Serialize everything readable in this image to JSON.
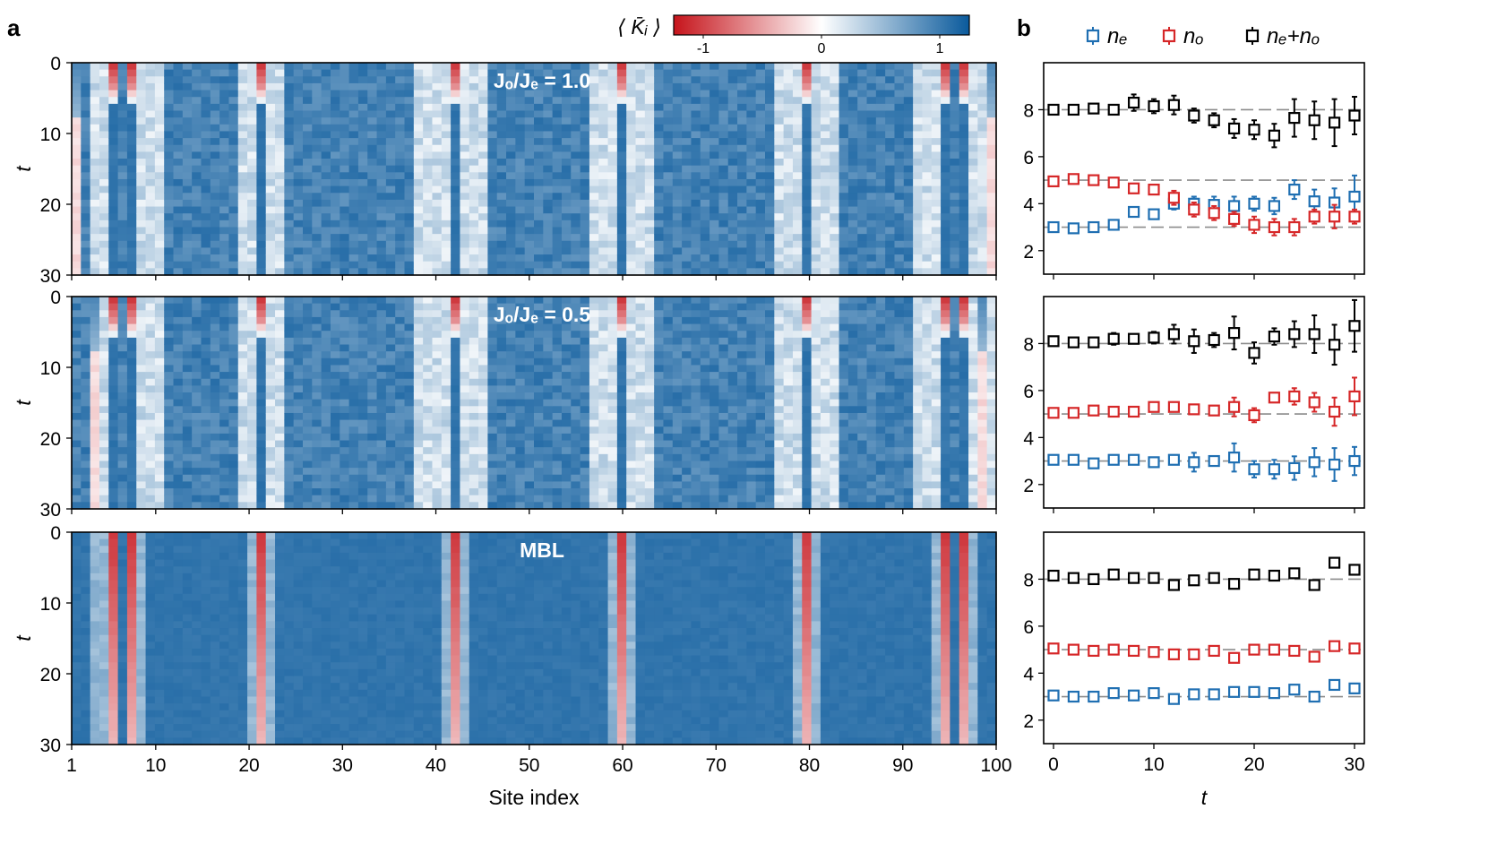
{
  "chart_data": [
    {
      "type": "heatmap",
      "panel_label": "a",
      "xlabel": "Site index",
      "ylabel": "t",
      "x_range": [
        1,
        100
      ],
      "y_range": [
        0,
        30
      ],
      "y_inverted": true,
      "x_ticks": [
        "1",
        "10",
        "20",
        "30",
        "40",
        "50",
        "60",
        "70",
        "80",
        "90",
        "100"
      ],
      "y_ticks": [
        "0",
        "10",
        "20",
        "30"
      ],
      "colorbar": {
        "label": "⟨ K̄ᵢ ⟩",
        "range": [
          -1.25,
          1.25
        ],
        "ticks": [
          "-1",
          "0",
          "1"
        ],
        "colors": [
          "#c6141b",
          "#ffffff",
          "#0a5a9c"
        ]
      },
      "red_sites": [
        5,
        7,
        21,
        42,
        60,
        80,
        95,
        97
      ],
      "subpanels": [
        {
          "annotation": "Jₒ/Jₑ = 1.0",
          "light_sites": [
            3,
            4,
            8,
            9,
            10,
            19,
            20,
            22,
            23,
            38,
            39,
            40,
            41,
            43,
            44,
            45,
            57,
            58,
            59,
            61,
            62,
            63,
            77,
            78,
            79,
            81,
            82,
            83,
            92,
            93,
            94,
            98,
            99,
            100
          ],
          "edge_pink_sites": [
            1,
            100
          ],
          "mbl": false
        },
        {
          "annotation": "Jₒ/Jₑ = 0.5",
          "light_sites": [
            3,
            4,
            8,
            9,
            10,
            19,
            20,
            22,
            23,
            38,
            39,
            40,
            41,
            43,
            44,
            45,
            57,
            58,
            59,
            61,
            62,
            63,
            77,
            78,
            79,
            81,
            82,
            83,
            92,
            93,
            94,
            98,
            99,
            100
          ],
          "edge_pink_sites": [
            3,
            99
          ],
          "mbl": false
        },
        {
          "annotation": "MBL",
          "light_sites": [
            3,
            4,
            8,
            20,
            22,
            41,
            43,
            59,
            61,
            79,
            81,
            94,
            98
          ],
          "edge_pink_sites": [],
          "mbl": true
        }
      ]
    },
    {
      "type": "scatter",
      "panel_label": "b",
      "xlabel": "t",
      "x_range": [
        0,
        30
      ],
      "x_ticks": [
        "0",
        "10",
        "20",
        "30"
      ],
      "y_range": [
        1,
        10
      ],
      "y_ticks": [
        "2",
        "4",
        "6",
        "8"
      ],
      "reference_lines": [
        3,
        5,
        8
      ],
      "legend": [
        {
          "name": "nₑ",
          "color": "#1f6fb2"
        },
        {
          "name": "nₒ",
          "color": "#d62728"
        },
        {
          "name": "nₑ+nₒ",
          "color": "#000000"
        }
      ],
      "x": [
        0,
        2,
        4,
        6,
        8,
        10,
        12,
        14,
        16,
        18,
        20,
        22,
        24,
        26,
        28,
        30
      ],
      "subpanels": [
        {
          "series": [
            {
              "name": "nₑ",
              "values": [
                3.0,
                2.95,
                3.0,
                3.1,
                3.65,
                3.55,
                4.0,
                4.0,
                3.95,
                3.9,
                4.0,
                3.9,
                4.6,
                4.1,
                4.05,
                4.3
              ],
              "errors": [
                0.1,
                0.1,
                0.1,
                0.1,
                0.2,
                0.2,
                0.25,
                0.3,
                0.35,
                0.4,
                0.3,
                0.35,
                0.4,
                0.5,
                0.6,
                0.9
              ]
            },
            {
              "name": "nₒ",
              "values": [
                4.95,
                5.05,
                5.0,
                4.9,
                4.65,
                4.6,
                4.25,
                3.75,
                3.6,
                3.35,
                3.1,
                3.0,
                3.0,
                3.45,
                3.45,
                3.45
              ],
              "errors": [
                0.1,
                0.1,
                0.1,
                0.1,
                0.2,
                0.2,
                0.3,
                0.3,
                0.3,
                0.3,
                0.35,
                0.35,
                0.35,
                0.3,
                0.5,
                0.3
              ]
            },
            {
              "name": "nₑ+nₒ",
              "values": [
                8.0,
                8.0,
                8.05,
                8.0,
                8.3,
                8.15,
                8.2,
                7.75,
                7.55,
                7.2,
                7.15,
                6.9,
                7.65,
                7.55,
                7.45,
                7.75
              ],
              "errors": [
                0.1,
                0.1,
                0.2,
                0.1,
                0.35,
                0.3,
                0.4,
                0.3,
                0.3,
                0.4,
                0.4,
                0.5,
                0.8,
                0.8,
                1.0,
                0.8
              ]
            }
          ]
        },
        {
          "series": [
            {
              "name": "nₑ",
              "values": [
                3.05,
                3.05,
                2.9,
                3.05,
                3.05,
                2.95,
                3.05,
                2.95,
                3.0,
                3.15,
                2.65,
                2.65,
                2.7,
                2.95,
                2.85,
                3.0
              ],
              "errors": [
                0.1,
                0.1,
                0.1,
                0.1,
                0.1,
                0.1,
                0.1,
                0.4,
                0.2,
                0.6,
                0.35,
                0.4,
                0.5,
                0.6,
                0.7,
                0.6
              ]
            },
            {
              "name": "nₒ",
              "values": [
                5.05,
                5.05,
                5.15,
                5.1,
                5.1,
                5.3,
                5.3,
                5.2,
                5.15,
                5.3,
                4.95,
                5.7,
                5.75,
                5.5,
                5.1,
                5.75
              ],
              "errors": [
                0.1,
                0.1,
                0.1,
                0.1,
                0.1,
                0.2,
                0.2,
                0.1,
                0.2,
                0.4,
                0.3,
                0.2,
                0.35,
                0.4,
                0.6,
                0.8
              ]
            },
            {
              "name": "nₑ+nₒ",
              "values": [
                8.1,
                8.05,
                8.05,
                8.2,
                8.2,
                8.25,
                8.4,
                8.1,
                8.15,
                8.45,
                7.6,
                8.3,
                8.4,
                8.4,
                7.95,
                8.75
              ],
              "errors": [
                0.1,
                0.1,
                0.15,
                0.25,
                0.15,
                0.25,
                0.4,
                0.5,
                0.3,
                0.7,
                0.45,
                0.35,
                0.55,
                0.8,
                0.85,
                1.1
              ]
            }
          ]
        },
        {
          "series": [
            {
              "name": "nₑ",
              "values": [
                3.05,
                3.0,
                3.0,
                3.15,
                3.05,
                3.15,
                2.9,
                3.1,
                3.1,
                3.2,
                3.2,
                3.15,
                3.3,
                3.0,
                3.5,
                3.35
              ],
              "errors": [
                0.1,
                0.1,
                0.1,
                0.1,
                0.1,
                0.1,
                0.1,
                0.1,
                0.1,
                0.1,
                0.1,
                0.1,
                0.1,
                0.1,
                0.15,
                0.1
              ]
            },
            {
              "name": "nₒ",
              "values": [
                5.05,
                5.0,
                4.95,
                5.0,
                4.95,
                4.9,
                4.8,
                4.8,
                4.95,
                4.65,
                5.0,
                5.0,
                4.95,
                4.7,
                5.15,
                5.05
              ],
              "errors": [
                0.1,
                0.1,
                0.1,
                0.1,
                0.1,
                0.1,
                0.1,
                0.1,
                0.1,
                0.1,
                0.1,
                0.1,
                0.1,
                0.1,
                0.15,
                0.1
              ]
            },
            {
              "name": "nₑ+nₒ",
              "values": [
                8.15,
                8.05,
                8.0,
                8.2,
                8.05,
                8.05,
                7.75,
                7.95,
                8.05,
                7.8,
                8.2,
                8.15,
                8.25,
                7.75,
                8.7,
                8.4
              ],
              "errors": [
                0.1,
                0.1,
                0.1,
                0.1,
                0.1,
                0.1,
                0.1,
                0.1,
                0.1,
                0.1,
                0.1,
                0.1,
                0.1,
                0.1,
                0.15,
                0.1
              ]
            }
          ]
        }
      ]
    }
  ]
}
